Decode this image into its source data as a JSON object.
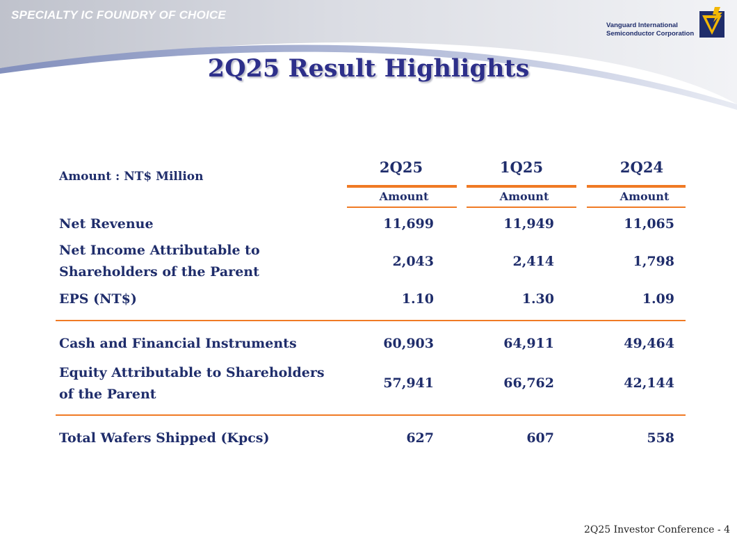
{
  "header": {
    "tagline": "SPECIALTY IC FOUNDRY OF CHOICE",
    "company_line1": "Vanguard International",
    "company_line2": "Semiconductor Corporation",
    "logo_icon": "vis-logo-icon"
  },
  "title": "2Q25 Result Highlights",
  "table": {
    "unit_label": "Amount : NT$ Million",
    "columns": [
      {
        "period": "2Q25",
        "sub": "Amount"
      },
      {
        "period": "1Q25",
        "sub": "Amount"
      },
      {
        "period": "2Q24",
        "sub": "Amount"
      }
    ],
    "rows": [
      {
        "label_line1": "Net Revenue",
        "label_line2": "",
        "values": [
          "11,699",
          "11,949",
          "11,065"
        ]
      },
      {
        "label_line1": "Net Income Attributable to",
        "label_line2": "Shareholders of the Parent",
        "values": [
          "2,043",
          "2,414",
          "1,798"
        ]
      },
      {
        "label_line1": "EPS (NT$)",
        "label_line2": "",
        "values": [
          "1.10",
          "1.30",
          "1.09"
        ]
      },
      {
        "label_line1": "Cash and Financial Instruments",
        "label_line2": "",
        "values": [
          "60,903",
          "64,911",
          "49,464"
        ]
      },
      {
        "label_line1": "Equity Attributable to Shareholders",
        "label_line2": "of the Parent",
        "values": [
          "57,941",
          "66,762",
          "42,144"
        ]
      },
      {
        "label_line1": "Total Wafers Shipped (Kpcs)",
        "label_line2": "",
        "values": [
          "627",
          "607",
          "558"
        ]
      }
    ]
  },
  "footer": "2Q25 Investor Conference - 4",
  "colors": {
    "title": "#2d2f8a",
    "text": "#1f2d6b",
    "accent_orange": "#f07a24",
    "header_gray": "#c9ccd6",
    "header_blue": "#8f9cc4"
  }
}
